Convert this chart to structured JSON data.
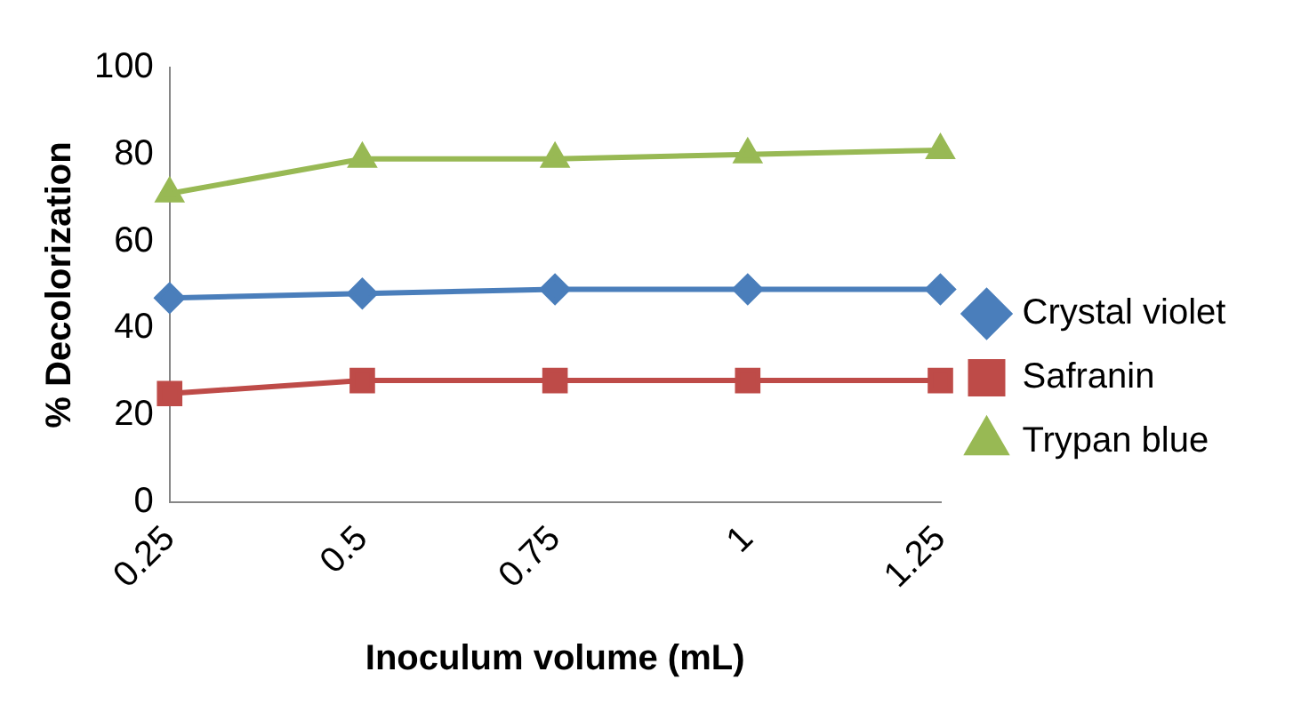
{
  "chart_data": {
    "type": "line",
    "xlabel": "Inoculum volume (mL)",
    "ylabel": "% Decolorization",
    "categories": [
      "0.25",
      "0.5",
      "0.75",
      "1",
      "1.25"
    ],
    "series": [
      {
        "name": "Crystal violet",
        "color": "#4a7ebb",
        "marker": "diamond",
        "values": [
          47,
          48,
          49,
          49,
          49
        ]
      },
      {
        "name": "Safranin",
        "color": "#be4b48",
        "marker": "square",
        "values": [
          25,
          28,
          28,
          28,
          28
        ]
      },
      {
        "name": "Trypan blue",
        "color": "#98b954",
        "marker": "triangle",
        "values": [
          71,
          79,
          79,
          80,
          81
        ]
      }
    ],
    "ylim": [
      0,
      100
    ],
    "yticks": [
      0,
      20,
      40,
      60,
      80,
      100
    ],
    "grid": false,
    "legend": "right",
    "line_style": "solid"
  }
}
